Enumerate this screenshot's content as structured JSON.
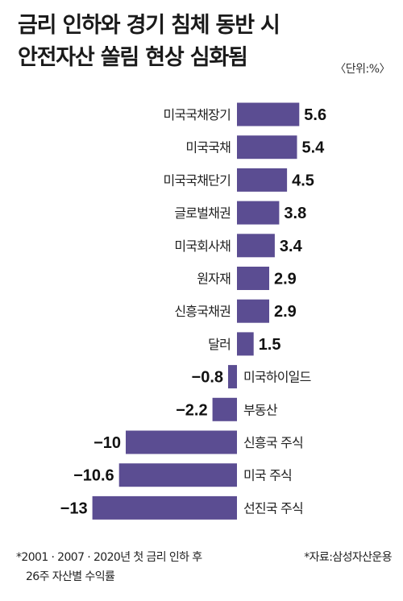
{
  "title_line1": "금리 인하와 경기 침체 동반 시",
  "title_line2": "안전자산 쏠림 현상 심화됨",
  "unit": "〈단위:%〉",
  "footnote_line1": "*2001 · 2007 · 2020년 첫 금리 인하 후",
  "footnote_line2": "26주 자산별 수익률",
  "source": "*자료:삼성자산운용",
  "bar_color": "#5b4d92",
  "chart_data": {
    "type": "bar",
    "orientation": "horizontal",
    "title": "금리 인하와 경기 침체 동반 시 안전자산 쏠림 현상 심화됨",
    "unit": "%",
    "categories": [
      "미국국채장기",
      "미국국채",
      "미국국채단기",
      "글로벌채권",
      "미국회사채",
      "원자재",
      "신흥국채권",
      "달러",
      "미국하이일드",
      "부동산",
      "신흥국 주식",
      "미국 주식",
      "선진국 주식"
    ],
    "values": [
      5.6,
      5.4,
      4.5,
      3.8,
      3.4,
      2.9,
      2.9,
      1.5,
      -0.8,
      -2.2,
      -10,
      -10.6,
      -13
    ],
    "value_labels": [
      "5.6",
      "5.4",
      "4.5",
      "3.8",
      "3.4",
      "2.9",
      "2.9",
      "1.5",
      "−0.8",
      "−2.2",
      "−10",
      "−10.6",
      "−13"
    ],
    "xlim": [
      -13,
      5.6
    ],
    "grid": false,
    "legend": "none"
  }
}
